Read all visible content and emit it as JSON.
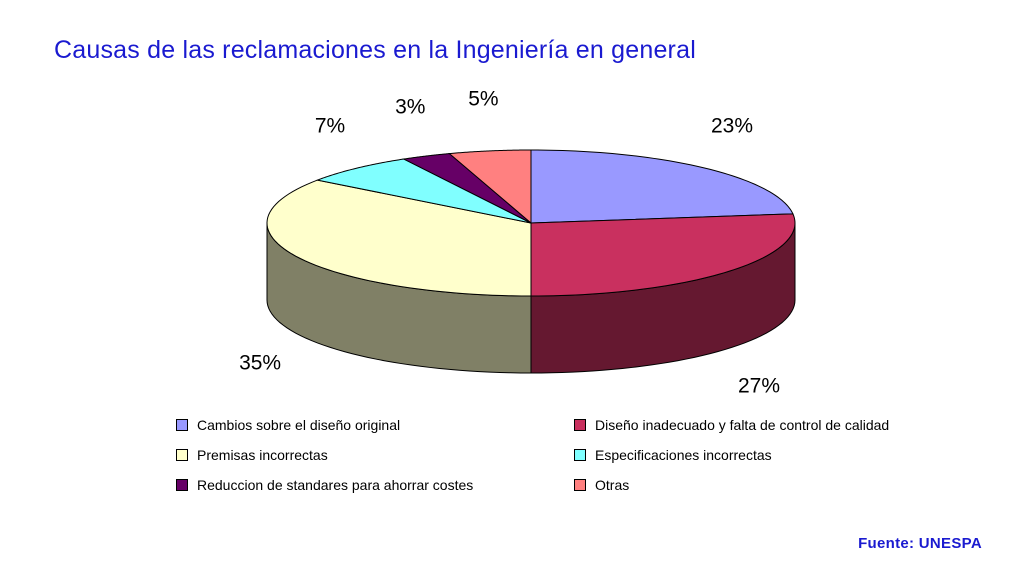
{
  "title": "Causas de las reclamaciones en la Ingeniería en general",
  "source": "Fuente: UNESPA",
  "chart_data": {
    "type": "pie",
    "title": "Causas de las reclamaciones en la Ingeniería en general",
    "categories": [
      "Cambios sobre el diseño original",
      "Diseño inadecuado y falta de control de calidad",
      "Premisas incorrectas",
      "Especificaciones incorrectas",
      "Reduccion de standares para ahorrar costes",
      "Otras"
    ],
    "values": [
      23,
      27,
      35,
      7,
      3,
      5
    ],
    "labels": [
      "23%",
      "27%",
      "35%",
      "7%",
      "3%",
      "5%"
    ],
    "colors": [
      "#9999ff",
      "#c9305f",
      "#ffffcc",
      "#80ffff",
      "#660066",
      "#ff8080"
    ],
    "legend": "bottom",
    "three_d": true
  }
}
